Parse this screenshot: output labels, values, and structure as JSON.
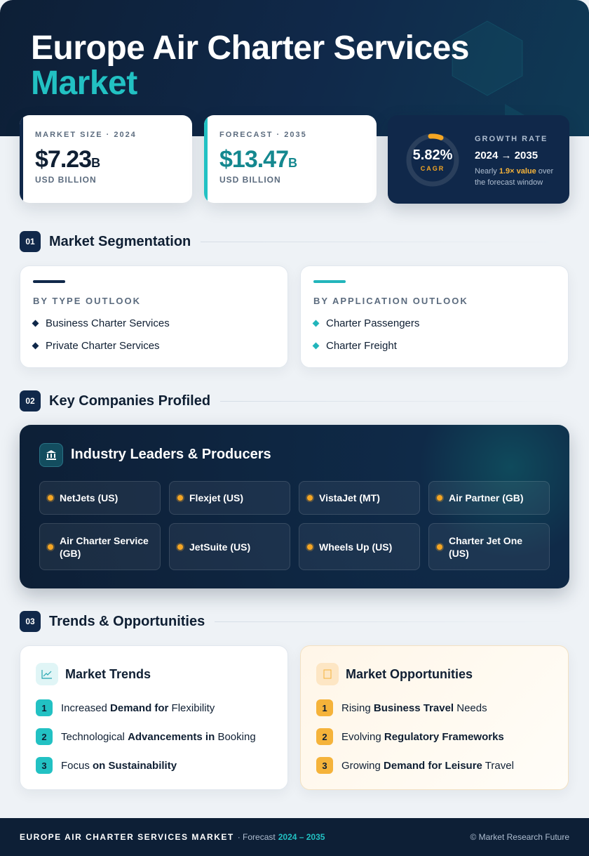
{
  "header": {
    "title": "Europe Air Charter Services",
    "title_accent": "Market"
  },
  "stats": [
    {
      "label": "MARKET SIZE · 2024",
      "value": "$7.23",
      "unit": "B",
      "caption": "USD BILLION"
    },
    {
      "label": "FORECAST · 2035",
      "value": "$13.47",
      "unit": "B",
      "caption": "USD BILLION"
    }
  ],
  "growth": {
    "value": "5.82%",
    "value_label": "CAGR",
    "label": "GROWTH RATE",
    "period": "2024 → 2035",
    "note": [
      {
        "text": "Nearly "
      },
      {
        "text": "1.9× value",
        "emphasis": true
      },
      {
        "text": " over the forecast window"
      }
    ]
  },
  "sections": [
    {
      "number": "01",
      "title": "Market Segmentation"
    },
    {
      "number": "02",
      "title": "Key Companies Profiled"
    },
    {
      "number": "03",
      "title": "Trends & Opportunities"
    }
  ],
  "segmentation": [
    {
      "title": "BY TYPE OUTLOOK",
      "items": [
        "Business Charter Services",
        "Private Charter Services"
      ]
    },
    {
      "title": "BY APPLICATION OUTLOOK",
      "items": [
        "Charter Passengers",
        "Charter Freight"
      ]
    }
  ],
  "companies": {
    "title": "Industry Leaders & Producers",
    "items": [
      "NetJets (US)",
      "Flexjet (US)",
      "VistaJet (MT)",
      "Air Partner (GB)",
      "Air Charter Service (GB)",
      "JetSuite (US)",
      "Wheels Up (US)",
      "Charter Jet One (US)"
    ]
  },
  "trends": {
    "title": "Market Trends",
    "items": [
      {
        "number": "1",
        "parts": [
          {
            "text": "Increased "
          },
          {
            "text": "Demand for",
            "emphasis": true
          },
          {
            "text": " Flexibility"
          }
        ]
      },
      {
        "number": "2",
        "parts": [
          {
            "text": "Technological "
          },
          {
            "text": "Advancements in",
            "emphasis": true
          },
          {
            "text": " Booking"
          }
        ]
      },
      {
        "number": "3",
        "parts": [
          {
            "text": "Focus "
          },
          {
            "text": "on Sustainability",
            "emphasis": true
          }
        ]
      }
    ]
  },
  "opportunities": {
    "title": "Market Opportunities",
    "items": [
      {
        "number": "1",
        "parts": [
          {
            "text": "Rising "
          },
          {
            "text": "Business Travel",
            "emphasis": true
          },
          {
            "text": " Needs"
          }
        ]
      },
      {
        "number": "2",
        "parts": [
          {
            "text": "Evolving "
          },
          {
            "text": "Regulatory Frameworks",
            "emphasis": true
          }
        ]
      },
      {
        "number": "3",
        "parts": [
          {
            "text": "Growing "
          },
          {
            "text": "Demand for Leisure",
            "emphasis": true
          },
          {
            "text": " Travel"
          }
        ]
      }
    ]
  },
  "footer": {
    "title": "EUROPE AIR CHARTER SERVICES MARKET",
    "forecast_label": "· Forecast",
    "forecast_period": "2024 – 2035",
    "copyright": "© Market Research Future"
  }
}
